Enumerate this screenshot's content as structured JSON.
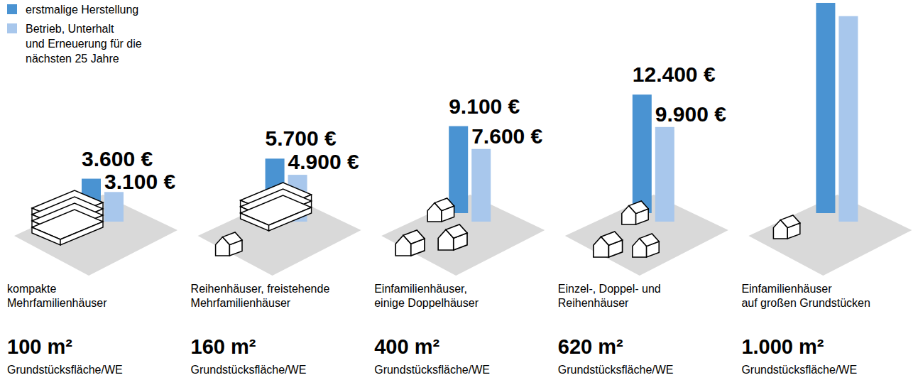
{
  "chart_data": {
    "type": "bar",
    "categories": [
      "kompakte\nMehrfamilienhäuser",
      "Reihenhäuser, freistehende\nMehrfamilienhäuser",
      "Einfamilienhäuser,\neinige Doppelhäuser",
      "Einzel-, Doppel- und\nReihenhäuser",
      "Einfamilienhäuser\nauf großen Grundstücken"
    ],
    "series": [
      {
        "name": "erstmalige Herstellung",
        "color": "#4a93d2",
        "values": [
          3600,
          5700,
          9100,
          12400,
          22000
        ],
        "value_labels": [
          "3.600 €",
          "5.700 €",
          "9.100 €",
          "12.400 €",
          null
        ]
      },
      {
        "name": "Betrieb, Unterhalt\nund Erneuerung für die\nnächsten 25 Jahre",
        "color": "#a8c7ec",
        "values": [
          3100,
          4900,
          7600,
          9900,
          21500
        ],
        "value_labels": [
          "3.100 €",
          "4.900 €",
          "7.600 €",
          "9.900 €",
          null
        ]
      }
    ],
    "site_labels": [
      "100 m²",
      "160 m²",
      "400 m²",
      "620 m²",
      "1.000 m²"
    ],
    "site_caption": "Grundstücksfläche/WE",
    "data_labels": true,
    "legend": "top-left",
    "tick_labels": false
  }
}
